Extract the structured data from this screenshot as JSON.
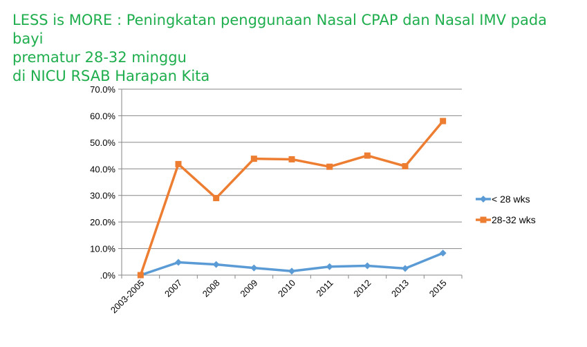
{
  "title_lines": [
    "LESS is MORE : Peningkatan penggunaan Nasal CPAP dan Nasal IMV pada bayi",
    "prematur 28-32 minggu",
    "di NICU RSAB Harapan Kita"
  ],
  "colors": {
    "title": "#1fae4d",
    "series_1": "#5b9bd5",
    "series_2": "#ed7d31",
    "grid": "#868686"
  },
  "chart_data": {
    "type": "line",
    "title": "LESS is MORE : Peningkatan penggunaan Nasal CPAP dan Nasal IMV pada bayi prematur 28-32 minggu di NICU RSAB Harapan Kita",
    "xlabel": "",
    "ylabel": "",
    "categories": [
      "2003-2005",
      "2007",
      "2008",
      "2009",
      "2010",
      "2011",
      "2012",
      "2013",
      "2015"
    ],
    "ylim": [
      0,
      70
    ],
    "y_ticks": [
      ".0%",
      "10.0%",
      "20.0%",
      "30.0%",
      "40.0%",
      "50.0%",
      "60.0%",
      "70.0%"
    ],
    "y_tick_values": [
      0,
      10,
      20,
      30,
      40,
      50,
      60,
      70
    ],
    "grid": true,
    "legend_position": "right",
    "series": [
      {
        "name": "< 28 wks",
        "marker": "diamond",
        "values": [
          0.0,
          4.8,
          4.0,
          2.7,
          1.5,
          3.2,
          3.5,
          2.5,
          8.3
        ]
      },
      {
        "name": "28-32 wks",
        "marker": "square",
        "values": [
          0.0,
          41.8,
          29.0,
          43.8,
          43.6,
          40.8,
          45.0,
          41.0,
          58.0
        ]
      }
    ]
  }
}
